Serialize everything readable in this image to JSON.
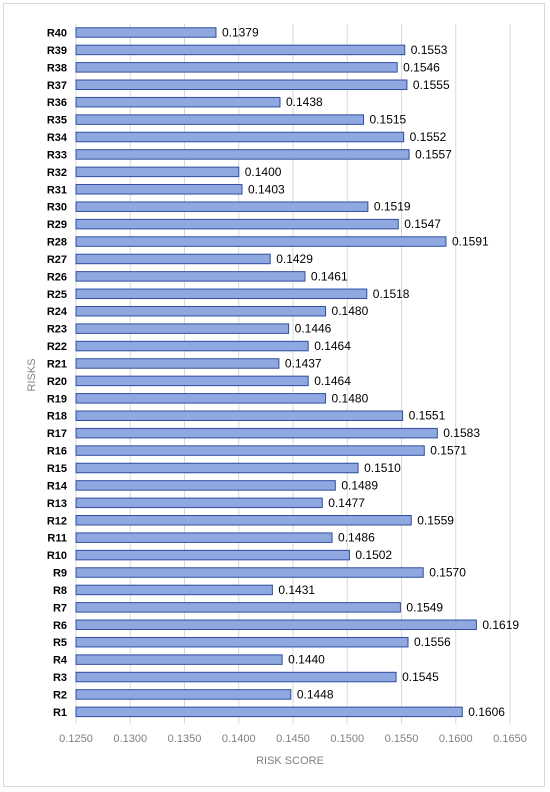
{
  "chart_data": {
    "type": "bar",
    "orientation": "horizontal",
    "xlabel": "RISK SCORE",
    "ylabel": "RISKS",
    "xlim": [
      0.125,
      0.165
    ],
    "x_ticks": [
      "0.1250",
      "0.1300",
      "0.1350",
      "0.1400",
      "0.1450",
      "0.1500",
      "0.1550",
      "0.1600",
      "0.1650"
    ],
    "grid": true,
    "legend": "none",
    "bar_fill": "#8fa8e0",
    "bar_edge": "#2f4f9f",
    "categories": [
      "R40",
      "R39",
      "R38",
      "R37",
      "R36",
      "R35",
      "R34",
      "R33",
      "R32",
      "R31",
      "R30",
      "R29",
      "R28",
      "R27",
      "R26",
      "R25",
      "R24",
      "R23",
      "R22",
      "R21",
      "R20",
      "R19",
      "R18",
      "R17",
      "R16",
      "R15",
      "R14",
      "R13",
      "R12",
      "R11",
      "R10",
      "R9",
      "R8",
      "R7",
      "R6",
      "R5",
      "R4",
      "R3",
      "R2",
      "R1"
    ],
    "values": [
      0.1379,
      0.1553,
      0.1546,
      0.1555,
      0.1438,
      0.1515,
      0.1552,
      0.1557,
      0.14,
      0.1403,
      0.1519,
      0.1547,
      0.1591,
      0.1429,
      0.1461,
      0.1518,
      0.148,
      0.1446,
      0.1464,
      0.1437,
      0.1464,
      0.148,
      0.1551,
      0.1583,
      0.1571,
      0.151,
      0.1489,
      0.1477,
      0.1559,
      0.1486,
      0.1502,
      0.157,
      0.1431,
      0.1549,
      0.1619,
      0.1556,
      0.144,
      0.1545,
      0.1448,
      0.1606
    ],
    "value_labels": [
      "0.1379",
      "0.1553",
      "0.1546",
      "0.1555",
      "0.1438",
      "0.1515",
      "0.1552",
      "0.1557",
      "0.1400",
      "0.1403",
      "0.1519",
      "0.1547",
      "0.1591",
      "0.1429",
      "0.1461",
      "0.1518",
      "0.1480",
      "0.1446",
      "0.1464",
      "0.1437",
      "0.1464",
      "0.1480",
      "0.1551",
      "0.1583",
      "0.1571",
      "0.1510",
      "0.1489",
      "0.1477",
      "0.1559",
      "0.1486",
      "0.1502",
      "0.1570",
      "0.1431",
      "0.1549",
      "0.1619",
      "0.1556",
      "0.1440",
      "0.1545",
      "0.1448",
      "0.1606"
    ]
  }
}
